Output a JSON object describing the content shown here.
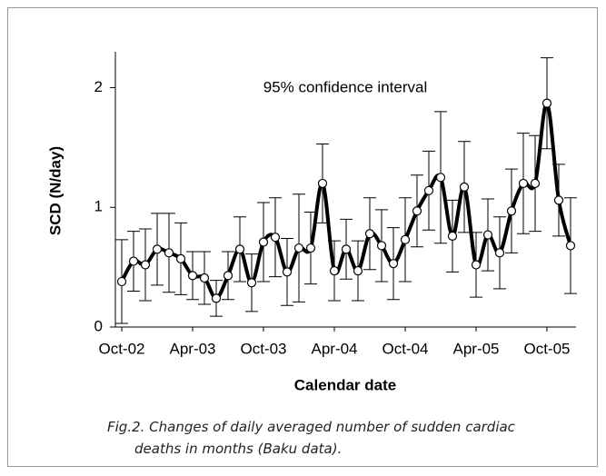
{
  "chart_data": {
    "type": "line",
    "title": "95% confidence interval",
    "x_label": "Calendar date",
    "y_label": "SCD (N/day)",
    "caption": "Fig.2. Changes of daily averaged number of sudden cardiac deaths in months (Baku data).",
    "categories": [
      "Oct-02",
      null,
      null,
      null,
      null,
      null,
      "Apr-03",
      null,
      null,
      null,
      null,
      null,
      "Oct-03",
      null,
      null,
      null,
      null,
      null,
      "Apr-04",
      null,
      null,
      null,
      null,
      null,
      "Oct-04",
      null,
      null,
      null,
      null,
      null,
      "Apr-05",
      null,
      null,
      null,
      null,
      null,
      "Oct-05",
      null,
      null
    ],
    "values": [
      0.38,
      0.55,
      0.52,
      0.65,
      0.62,
      0.57,
      0.43,
      0.41,
      0.24,
      0.43,
      0.65,
      0.37,
      0.71,
      0.75,
      0.46,
      0.66,
      0.66,
      1.2,
      0.47,
      0.65,
      0.47,
      0.78,
      0.68,
      0.53,
      0.73,
      0.97,
      1.14,
      1.25,
      0.76,
      1.17,
      0.52,
      0.77,
      0.62,
      0.97,
      1.2,
      1.2,
      1.87,
      1.06,
      0.68
    ],
    "errors": [
      0.35,
      0.25,
      0.3,
      0.3,
      0.33,
      0.3,
      0.2,
      0.22,
      0.15,
      0.2,
      0.27,
      0.24,
      0.33,
      0.33,
      0.28,
      0.45,
      0.3,
      0.33,
      0.25,
      0.25,
      0.25,
      0.3,
      0.3,
      0.3,
      0.35,
      0.3,
      0.33,
      0.55,
      0.3,
      0.38,
      0.27,
      0.3,
      0.3,
      0.35,
      0.42,
      0.4,
      0.38,
      0.3,
      0.4
    ],
    "color": "#000000",
    "ylim": [
      0,
      2.3
    ],
    "yticks": [
      0,
      1,
      2
    ]
  }
}
